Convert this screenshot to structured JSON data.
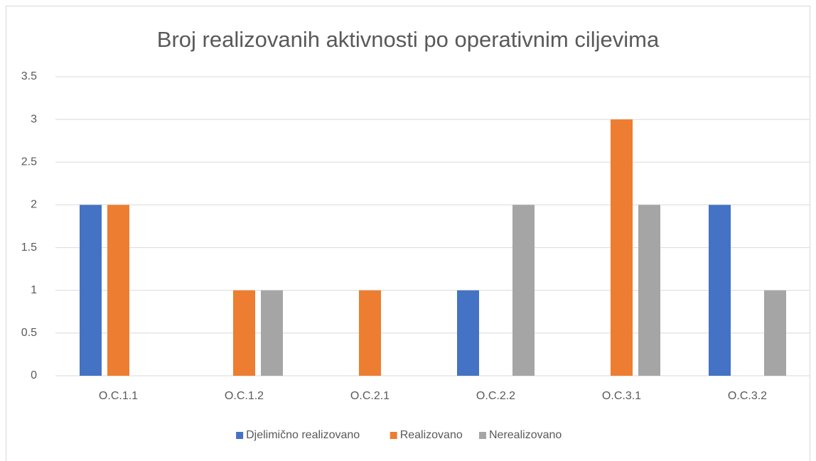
{
  "chart_data": {
    "type": "bar",
    "title": "Broj realizovanih aktivnosti po operativnim ciljevima",
    "categories": [
      "O.C.1.1",
      "O.C.1.2",
      "O.C.2.1",
      "O.C.2.2",
      "O.C.3.1",
      "O.C.3.2"
    ],
    "series": [
      {
        "name": "Djelimično realizovano",
        "color": "#4472c4",
        "values": [
          2,
          0,
          0,
          1,
          0,
          2
        ]
      },
      {
        "name": "Realizovano",
        "color": "#ed7d31",
        "values": [
          2,
          1,
          1,
          0,
          3,
          0
        ]
      },
      {
        "name": "Nerealizovano",
        "color": "#a5a5a5",
        "values": [
          0,
          1,
          0,
          2,
          2,
          1
        ]
      }
    ],
    "ylim": [
      0,
      3.5
    ],
    "yticks": [
      0,
      0.5,
      1,
      1.5,
      2,
      2.5,
      3,
      3.5
    ],
    "grid": true,
    "legend": "bottom"
  }
}
